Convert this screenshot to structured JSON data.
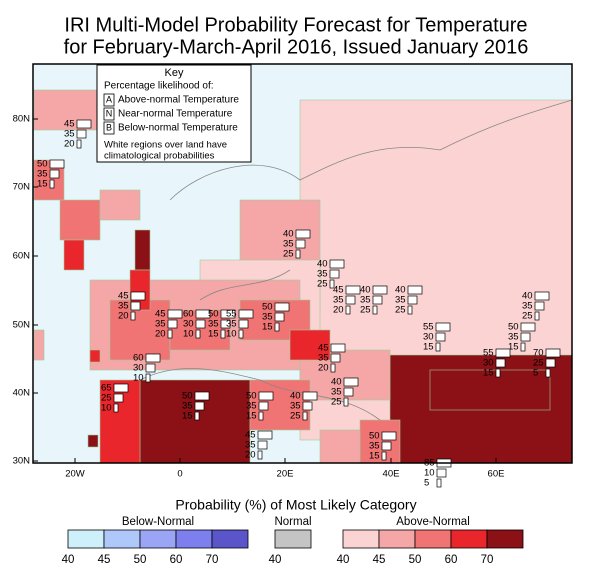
{
  "title": [
    "IRI Multi-Model Probability Forecast for Temperature",
    "for February-March-April 2016, Issued January 2016"
  ],
  "key": {
    "title": "Key",
    "subtitle": "Percentage likelihood of:",
    "items": [
      {
        "letter": "A",
        "text": "Above-normal Temperature"
      },
      {
        "letter": "N",
        "text": "Near-normal Temperature"
      },
      {
        "letter": "B",
        "text": "Below-normal Temperature"
      }
    ],
    "note": [
      "White regions over land have",
      "climatological probabilities"
    ]
  },
  "map": {
    "lat_labels": [
      "80N",
      "70N",
      "60N",
      "50N",
      "40N",
      "30N"
    ],
    "lon_labels": [
      "20W",
      "0",
      "20E",
      "40E",
      "60E"
    ],
    "forecasts": [
      [
        45,
        35,
        20
      ],
      [
        50,
        35,
        15
      ],
      [
        40,
        35,
        25
      ],
      [
        40,
        35,
        25
      ],
      [
        45,
        35,
        20
      ],
      [
        40,
        35,
        25
      ],
      [
        40,
        35,
        25
      ],
      [
        40,
        35,
        25
      ],
      [
        45,
        35,
        20
      ],
      [
        50,
        35,
        15
      ],
      [
        45,
        35,
        20
      ],
      [
        60,
        30,
        10
      ],
      [
        50,
        35,
        15
      ],
      [
        55,
        35,
        10
      ],
      [
        55,
        30,
        15
      ],
      [
        50,
        35,
        15
      ],
      [
        45,
        35,
        20
      ],
      [
        55,
        30,
        15
      ],
      [
        70,
        25,
        5
      ],
      [
        60,
        30,
        10
      ],
      [
        40,
        35,
        25
      ],
      [
        65,
        25,
        10
      ],
      [
        50,
        35,
        15
      ],
      [
        50,
        35,
        15
      ],
      [
        40,
        35,
        25
      ],
      [
        45,
        35,
        20
      ],
      [
        50,
        35,
        15
      ],
      [
        85,
        10,
        5
      ]
    ]
  },
  "legend": {
    "title": "Probability (%) of Most Likely Category",
    "groups": [
      {
        "name": "Below-Normal",
        "colors": [
          "#cdf0fa",
          "#aec8fa",
          "#9aa5f5",
          "#7d7fef",
          "#5a55c8"
        ],
        "labels": [
          40,
          45,
          50,
          60,
          70
        ]
      },
      {
        "name": "Normal",
        "colors": [
          "#c4c4c4"
        ],
        "labels": [
          40
        ]
      },
      {
        "name": "Above-Normal",
        "colors": [
          "#fcd3d3",
          "#f5a7a7",
          "#f07474",
          "#e8262b",
          "#8b1116"
        ],
        "labels": [
          40,
          45,
          50,
          60,
          70
        ]
      }
    ]
  }
}
